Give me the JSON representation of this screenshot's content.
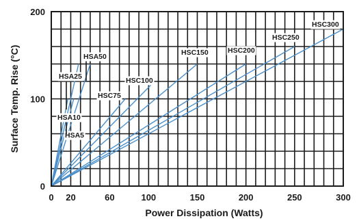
{
  "chart_data": {
    "type": "line",
    "title": "",
    "xlabel": "Power Dissipation (Watts)",
    "ylabel": "Surface Temp. Rise (°C)",
    "xlim": [
      0,
      300
    ],
    "ylim": [
      0,
      200
    ],
    "x_ticks": [
      0,
      20,
      60,
      100,
      150,
      200,
      250,
      300
    ],
    "x_tick_labels": [
      "0",
      "20",
      "60",
      "100",
      "150",
      "200",
      "250",
      "300"
    ],
    "y_ticks": [
      0,
      100,
      200
    ],
    "y_tick_labels": [
      "0",
      "100",
      "200"
    ],
    "x_grid_step": 10,
    "y_grid_step": 20,
    "grid": true,
    "legend": "none (series labeled inline)",
    "colors": {
      "series_line": "#4a8fca",
      "grid": "#1a1a1a",
      "label_leader": "#1a1a1a"
    },
    "series": [
      {
        "name": "HSA5",
        "x": [
          0,
          17
        ],
        "y": [
          0,
          100
        ]
      },
      {
        "name": "HSA10",
        "x": [
          0,
          23
        ],
        "y": [
          0,
          100
        ]
      },
      {
        "name": "HSA25",
        "x": [
          0,
          28
        ],
        "y": [
          0,
          140
        ]
      },
      {
        "name": "HSA50",
        "x": [
          0,
          40
        ],
        "y": [
          0,
          140
        ]
      },
      {
        "name": "HSC75",
        "x": [
          0,
          76
        ],
        "y": [
          0,
          100
        ]
      },
      {
        "name": "HSC100",
        "x": [
          0,
          106
        ],
        "y": [
          0,
          120
        ]
      },
      {
        "name": "HSC150",
        "x": [
          0,
          150
        ],
        "y": [
          0,
          140
        ]
      },
      {
        "name": "HSC200",
        "x": [
          0,
          200
        ],
        "y": [
          0,
          140
        ]
      },
      {
        "name": "HSC250",
        "x": [
          0,
          250
        ],
        "y": [
          0,
          160
        ]
      },
      {
        "name": "HSC300",
        "x": [
          0,
          300
        ],
        "y": [
          0,
          180
        ]
      }
    ]
  }
}
